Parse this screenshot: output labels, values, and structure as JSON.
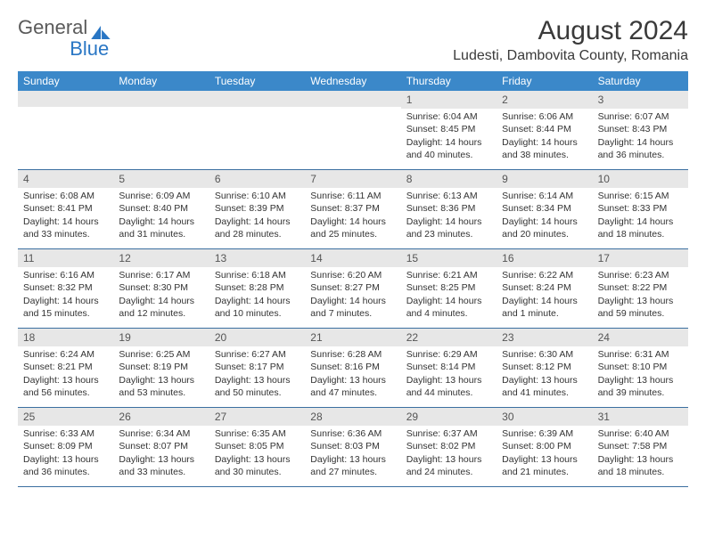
{
  "logo": {
    "general": "General",
    "blue": "Blue"
  },
  "title": "August 2024",
  "location": "Ludesti, Dambovita County, Romania",
  "colors": {
    "header_bg": "#3b88c9",
    "header_text": "#ffffff",
    "daybar_bg": "#e7e7e7",
    "border": "#3b6fa0",
    "logo_blue": "#2976c4",
    "logo_gray": "#5a5a5a"
  },
  "weekdays": [
    "Sunday",
    "Monday",
    "Tuesday",
    "Wednesday",
    "Thursday",
    "Friday",
    "Saturday"
  ],
  "weeks": [
    [
      null,
      null,
      null,
      null,
      {
        "n": "1",
        "sunrise": "Sunrise: 6:04 AM",
        "sunset": "Sunset: 8:45 PM",
        "daylight": "Daylight: 14 hours and 40 minutes."
      },
      {
        "n": "2",
        "sunrise": "Sunrise: 6:06 AM",
        "sunset": "Sunset: 8:44 PM",
        "daylight": "Daylight: 14 hours and 38 minutes."
      },
      {
        "n": "3",
        "sunrise": "Sunrise: 6:07 AM",
        "sunset": "Sunset: 8:43 PM",
        "daylight": "Daylight: 14 hours and 36 minutes."
      }
    ],
    [
      {
        "n": "4",
        "sunrise": "Sunrise: 6:08 AM",
        "sunset": "Sunset: 8:41 PM",
        "daylight": "Daylight: 14 hours and 33 minutes."
      },
      {
        "n": "5",
        "sunrise": "Sunrise: 6:09 AM",
        "sunset": "Sunset: 8:40 PM",
        "daylight": "Daylight: 14 hours and 31 minutes."
      },
      {
        "n": "6",
        "sunrise": "Sunrise: 6:10 AM",
        "sunset": "Sunset: 8:39 PM",
        "daylight": "Daylight: 14 hours and 28 minutes."
      },
      {
        "n": "7",
        "sunrise": "Sunrise: 6:11 AM",
        "sunset": "Sunset: 8:37 PM",
        "daylight": "Daylight: 14 hours and 25 minutes."
      },
      {
        "n": "8",
        "sunrise": "Sunrise: 6:13 AM",
        "sunset": "Sunset: 8:36 PM",
        "daylight": "Daylight: 14 hours and 23 minutes."
      },
      {
        "n": "9",
        "sunrise": "Sunrise: 6:14 AM",
        "sunset": "Sunset: 8:34 PM",
        "daylight": "Daylight: 14 hours and 20 minutes."
      },
      {
        "n": "10",
        "sunrise": "Sunrise: 6:15 AM",
        "sunset": "Sunset: 8:33 PM",
        "daylight": "Daylight: 14 hours and 18 minutes."
      }
    ],
    [
      {
        "n": "11",
        "sunrise": "Sunrise: 6:16 AM",
        "sunset": "Sunset: 8:32 PM",
        "daylight": "Daylight: 14 hours and 15 minutes."
      },
      {
        "n": "12",
        "sunrise": "Sunrise: 6:17 AM",
        "sunset": "Sunset: 8:30 PM",
        "daylight": "Daylight: 14 hours and 12 minutes."
      },
      {
        "n": "13",
        "sunrise": "Sunrise: 6:18 AM",
        "sunset": "Sunset: 8:28 PM",
        "daylight": "Daylight: 14 hours and 10 minutes."
      },
      {
        "n": "14",
        "sunrise": "Sunrise: 6:20 AM",
        "sunset": "Sunset: 8:27 PM",
        "daylight": "Daylight: 14 hours and 7 minutes."
      },
      {
        "n": "15",
        "sunrise": "Sunrise: 6:21 AM",
        "sunset": "Sunset: 8:25 PM",
        "daylight": "Daylight: 14 hours and 4 minutes."
      },
      {
        "n": "16",
        "sunrise": "Sunrise: 6:22 AM",
        "sunset": "Sunset: 8:24 PM",
        "daylight": "Daylight: 14 hours and 1 minute."
      },
      {
        "n": "17",
        "sunrise": "Sunrise: 6:23 AM",
        "sunset": "Sunset: 8:22 PM",
        "daylight": "Daylight: 13 hours and 59 minutes."
      }
    ],
    [
      {
        "n": "18",
        "sunrise": "Sunrise: 6:24 AM",
        "sunset": "Sunset: 8:21 PM",
        "daylight": "Daylight: 13 hours and 56 minutes."
      },
      {
        "n": "19",
        "sunrise": "Sunrise: 6:25 AM",
        "sunset": "Sunset: 8:19 PM",
        "daylight": "Daylight: 13 hours and 53 minutes."
      },
      {
        "n": "20",
        "sunrise": "Sunrise: 6:27 AM",
        "sunset": "Sunset: 8:17 PM",
        "daylight": "Daylight: 13 hours and 50 minutes."
      },
      {
        "n": "21",
        "sunrise": "Sunrise: 6:28 AM",
        "sunset": "Sunset: 8:16 PM",
        "daylight": "Daylight: 13 hours and 47 minutes."
      },
      {
        "n": "22",
        "sunrise": "Sunrise: 6:29 AM",
        "sunset": "Sunset: 8:14 PM",
        "daylight": "Daylight: 13 hours and 44 minutes."
      },
      {
        "n": "23",
        "sunrise": "Sunrise: 6:30 AM",
        "sunset": "Sunset: 8:12 PM",
        "daylight": "Daylight: 13 hours and 41 minutes."
      },
      {
        "n": "24",
        "sunrise": "Sunrise: 6:31 AM",
        "sunset": "Sunset: 8:10 PM",
        "daylight": "Daylight: 13 hours and 39 minutes."
      }
    ],
    [
      {
        "n": "25",
        "sunrise": "Sunrise: 6:33 AM",
        "sunset": "Sunset: 8:09 PM",
        "daylight": "Daylight: 13 hours and 36 minutes."
      },
      {
        "n": "26",
        "sunrise": "Sunrise: 6:34 AM",
        "sunset": "Sunset: 8:07 PM",
        "daylight": "Daylight: 13 hours and 33 minutes."
      },
      {
        "n": "27",
        "sunrise": "Sunrise: 6:35 AM",
        "sunset": "Sunset: 8:05 PM",
        "daylight": "Daylight: 13 hours and 30 minutes."
      },
      {
        "n": "28",
        "sunrise": "Sunrise: 6:36 AM",
        "sunset": "Sunset: 8:03 PM",
        "daylight": "Daylight: 13 hours and 27 minutes."
      },
      {
        "n": "29",
        "sunrise": "Sunrise: 6:37 AM",
        "sunset": "Sunset: 8:02 PM",
        "daylight": "Daylight: 13 hours and 24 minutes."
      },
      {
        "n": "30",
        "sunrise": "Sunrise: 6:39 AM",
        "sunset": "Sunset: 8:00 PM",
        "daylight": "Daylight: 13 hours and 21 minutes."
      },
      {
        "n": "31",
        "sunrise": "Sunrise: 6:40 AM",
        "sunset": "Sunset: 7:58 PM",
        "daylight": "Daylight: 13 hours and 18 minutes."
      }
    ]
  ]
}
